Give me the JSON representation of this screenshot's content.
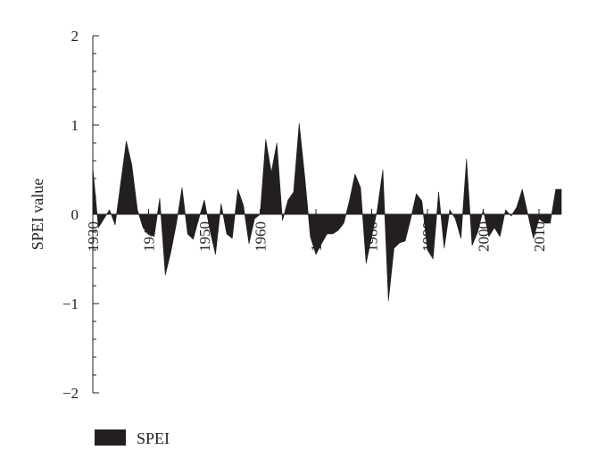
{
  "chart_data": {
    "type": "area",
    "title": "",
    "xlabel": "",
    "ylabel": "SPEI value",
    "ylim": [
      -2,
      2
    ],
    "xlim": [
      1930,
      2014
    ],
    "yticks": [
      2,
      1,
      0,
      -1,
      -2
    ],
    "ytick_labels": [
      "2",
      "1",
      "0",
      "−1",
      "−2"
    ],
    "xticks": [
      1930,
      1940,
      1950,
      1960,
      1970,
      1980,
      1990,
      2000,
      2010
    ],
    "xtick_labels": [
      "1930",
      "1940",
      "1950",
      "1960",
      "1970",
      "1980",
      "1990",
      "2000",
      "2010"
    ],
    "grid": false,
    "legend_position": "bottom-left",
    "fill_color": "#231f20",
    "series": [
      {
        "name": "SPEI",
        "x": [
          1930,
          1931,
          1932,
          1933,
          1934,
          1935,
          1936,
          1937,
          1938,
          1939,
          1940,
          1941,
          1942,
          1943,
          1944,
          1945,
          1946,
          1947,
          1948,
          1949,
          1950,
          1951,
          1952,
          1953,
          1954,
          1955,
          1956,
          1957,
          1958,
          1959,
          1960,
          1961,
          1962,
          1963,
          1964,
          1965,
          1966,
          1967,
          1968,
          1969,
          1970,
          1971,
          1972,
          1973,
          1974,
          1975,
          1976,
          1977,
          1978,
          1979,
          1980,
          1981,
          1982,
          1983,
          1984,
          1985,
          1986,
          1987,
          1988,
          1989,
          1990,
          1991,
          1992,
          1993,
          1994,
          1995,
          1996,
          1997,
          1998,
          1999,
          2000,
          2001,
          2002,
          2003,
          2004,
          2005,
          2006,
          2007,
          2008,
          2009,
          2010,
          2011,
          2012,
          2013,
          2014
        ],
        "values": [
          0.52,
          -0.15,
          -0.05,
          0.05,
          -0.12,
          0.35,
          0.82,
          0.55,
          0.05,
          -0.15,
          -0.22,
          -0.25,
          0.18,
          -0.68,
          -0.42,
          -0.1,
          0.3,
          -0.22,
          -0.28,
          -0.05,
          0.16,
          -0.18,
          -0.45,
          0.12,
          -0.22,
          -0.27,
          0.28,
          0.1,
          -0.33,
          -0.05,
          0.0,
          0.84,
          0.47,
          0.8,
          -0.07,
          0.16,
          0.25,
          1.02,
          0.42,
          -0.25,
          -0.45,
          -0.33,
          -0.22,
          -0.22,
          -0.18,
          -0.1,
          0.15,
          0.45,
          0.3,
          -0.55,
          -0.25,
          0.05,
          0.5,
          -0.97,
          -0.38,
          -0.32,
          -0.3,
          -0.05,
          0.23,
          0.15,
          -0.4,
          -0.5,
          0.25,
          -0.38,
          0.05,
          -0.05,
          -0.27,
          0.62,
          -0.35,
          -0.2,
          0.05,
          -0.25,
          -0.15,
          -0.25,
          0.05,
          -0.02,
          0.08,
          0.28,
          0.0,
          -0.27,
          -0.05,
          -0.1,
          -0.1,
          0.28,
          0.28
        ]
      }
    ]
  }
}
